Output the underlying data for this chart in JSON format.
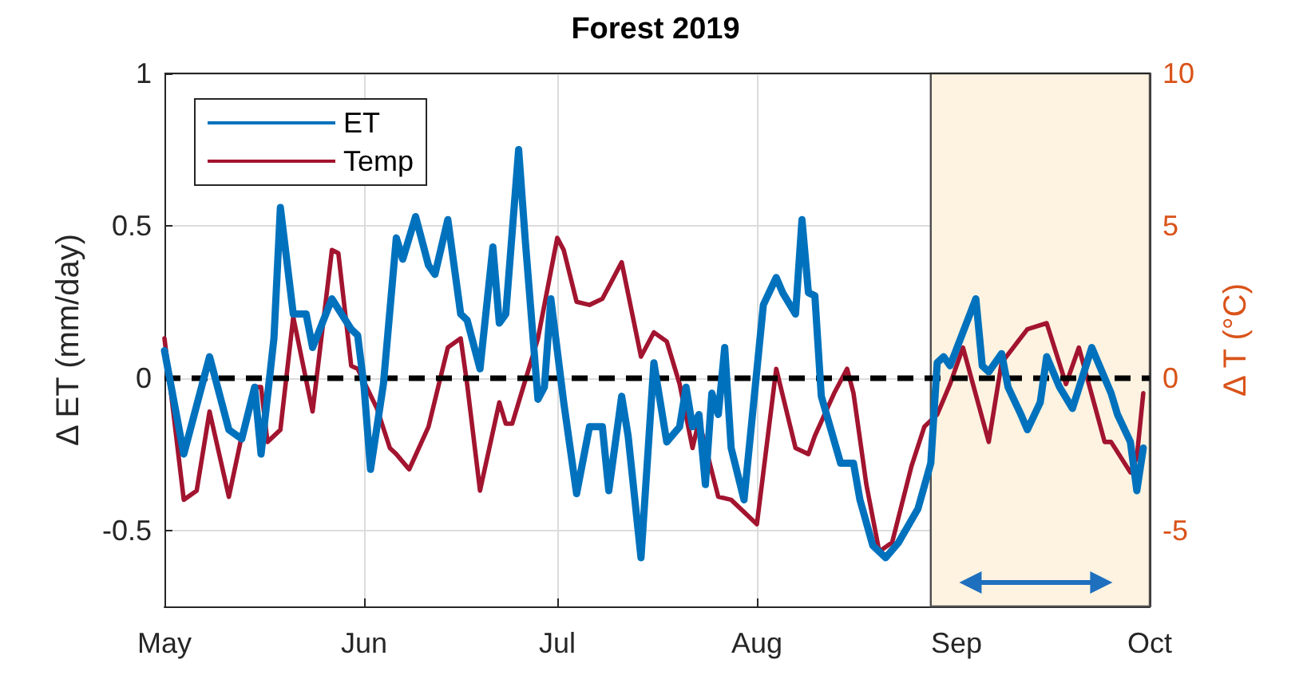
{
  "chart_data": {
    "type": "line",
    "title": "Forest 2019",
    "ylabel": "Δ ET (mm/day)",
    "y2label": "Δ T (°C)",
    "xlim": [
      "--05-01",
      "--10-01"
    ],
    "xticks": [
      {
        "value": "--05-01",
        "label": "May"
      },
      {
        "value": "--06-01",
        "label": "Jun"
      },
      {
        "value": "--07-01",
        "label": "Jul"
      },
      {
        "value": "--08-01",
        "label": "Aug"
      },
      {
        "value": "--09-01",
        "label": "Sep"
      },
      {
        "value": "--10-01",
        "label": "Oct"
      }
    ],
    "ylim": [
      -0.75,
      1
    ],
    "yticks": [
      -0.5,
      0,
      0.5,
      1
    ],
    "y2lim": [
      -7.5,
      10
    ],
    "y2ticks": [
      -5,
      0,
      5,
      10
    ],
    "grid": true,
    "legend": "top left",
    "marker": "none",
    "series": [
      {
        "name": "ET",
        "color": "#0072bd",
        "x": [
          "--05-01",
          "--05-04",
          "--05-08",
          "--05-11",
          "--05-13",
          "--05-15",
          "--05-16",
          "--05-18",
          "--05-19",
          "--05-21",
          "--05-23",
          "--05-24",
          "--05-27",
          "--05-30",
          "--05-31",
          "--06-01",
          "--06-02",
          "--06-04",
          "--06-06",
          "--06-07",
          "--06-09",
          "--06-11",
          "--06-12",
          "--06-14",
          "--06-16",
          "--06-17",
          "--06-19",
          "--06-21",
          "--06-22",
          "--06-23",
          "--06-25",
          "--06-26",
          "--06-28",
          "--06-29",
          "--06-30",
          "--07-02",
          "--07-04",
          "--07-06",
          "--07-08",
          "--07-09",
          "--07-11",
          "--07-12",
          "--07-14",
          "--07-16",
          "--07-18",
          "--07-20",
          "--07-21",
          "--07-22",
          "--07-23",
          "--07-24",
          "--07-25",
          "--07-26",
          "--07-27",
          "--07-28",
          "--07-30",
          "--08-02",
          "--08-04",
          "--08-05",
          "--08-07",
          "--08-08",
          "--08-09",
          "--08-10",
          "--08-11",
          "--08-14",
          "--08-16",
          "--08-17",
          "--08-19",
          "--08-21",
          "--08-23",
          "--08-26",
          "--08-28",
          "--08-29",
          "--08-30",
          "--08-31",
          "--09-04",
          "--09-05",
          "--09-06",
          "--09-08",
          "--09-09",
          "--09-11",
          "--09-12",
          "--09-14",
          "--09-15",
          "--09-17",
          "--09-19",
          "--09-22",
          "--09-25",
          "--09-26",
          "--09-28",
          "--09-29",
          "--09-30"
        ],
        "values": [
          0.09,
          -0.25,
          0.07,
          -0.17,
          -0.2,
          -0.03,
          -0.25,
          0.13,
          0.56,
          0.21,
          0.21,
          0.1,
          0.26,
          0.16,
          0.14,
          -0.03,
          -0.3,
          -0.02,
          0.46,
          0.39,
          0.53,
          0.37,
          0.34,
          0.52,
          0.21,
          0.19,
          0.03,
          0.43,
          0.18,
          0.21,
          0.75,
          0.46,
          -0.07,
          -0.03,
          0.26,
          -0.08,
          -0.38,
          -0.16,
          -0.16,
          -0.37,
          -0.06,
          -0.19,
          -0.59,
          0.05,
          -0.21,
          -0.16,
          -0.03,
          -0.16,
          -0.12,
          -0.35,
          -0.05,
          -0.12,
          0.1,
          -0.23,
          -0.4,
          0.24,
          0.33,
          0.28,
          0.21,
          0.52,
          0.28,
          0.27,
          -0.06,
          -0.28,
          -0.28,
          -0.4,
          -0.55,
          -0.59,
          -0.54,
          -0.43,
          -0.28,
          0.05,
          0.07,
          0.04,
          0.26,
          0.04,
          0.02,
          0.08,
          -0.03,
          -0.12,
          -0.17,
          -0.08,
          0.07,
          -0.03,
          -0.1,
          0.1,
          -0.05,
          -0.12,
          -0.21,
          -0.37,
          -0.23
        ]
      },
      {
        "name": "Temp",
        "color": "#a2142f",
        "axis": "y2",
        "x": [
          "--05-01",
          "--05-04",
          "--05-06",
          "--05-08",
          "--05-11",
          "--05-13",
          "--05-15",
          "--05-16",
          "--05-17",
          "--05-19",
          "--05-21",
          "--05-24",
          "--05-27",
          "--05-28",
          "--05-30",
          "--05-31",
          "--06-03",
          "--06-05",
          "--06-06",
          "--06-08",
          "--06-11",
          "--06-14",
          "--06-16",
          "--06-17",
          "--06-19",
          "--06-22",
          "--06-23",
          "--06-24",
          "--06-28",
          "--07-01",
          "--07-02",
          "--07-04",
          "--07-06",
          "--07-08",
          "--07-11",
          "--07-14",
          "--07-16",
          "--07-18",
          "--07-20",
          "--07-22",
          "--07-23",
          "--07-26",
          "--07-28",
          "--08-01",
          "--08-02",
          "--08-04",
          "--08-07",
          "--08-09",
          "--08-10",
          "--08-13",
          "--08-15",
          "--08-16",
          "--08-18",
          "--08-20",
          "--08-22",
          "--08-25",
          "--08-27",
          "--08-29",
          "--08-31",
          "--09-02",
          "--09-06",
          "--09-08",
          "--09-12",
          "--09-15",
          "--09-18",
          "--09-20",
          "--09-24",
          "--09-25",
          "--09-28",
          "--09-29",
          "--09-30"
        ],
        "values": [
          1.3,
          -4.0,
          -3.7,
          -1.1,
          -3.9,
          -1.9,
          -0.3,
          -0.3,
          -2.1,
          -1.7,
          2.0,
          -1.1,
          4.2,
          4.1,
          0.4,
          0.3,
          -1.0,
          -2.3,
          -2.5,
          -3.0,
          -1.6,
          1.0,
          1.3,
          -0.2,
          -3.7,
          -0.8,
          -1.5,
          -1.5,
          1.3,
          4.6,
          4.2,
          2.5,
          2.4,
          2.6,
          3.8,
          0.7,
          1.5,
          1.2,
          -0.2,
          -2.3,
          -1.4,
          -3.9,
          -4.0,
          -4.8,
          -3.1,
          0.3,
          -2.3,
          -2.5,
          -1.9,
          -0.5,
          0.3,
          -0.5,
          -3.5,
          -5.7,
          -5.4,
          -2.9,
          -1.6,
          -1.2,
          -0.2,
          1.0,
          -2.1,
          0.5,
          1.6,
          1.8,
          -0.2,
          1.0,
          -2.1,
          -2.1,
          -3.1,
          -2.6,
          -0.5
        ]
      }
    ],
    "ref_lines": [
      {
        "axis": "y",
        "value": 0,
        "color": "#000000",
        "line_style": "dashed"
      }
    ],
    "bands": [
      {
        "axis": "x",
        "from": "--08-28",
        "to": "--10-01",
        "color": "#fdf3e0"
      }
    ]
  }
}
